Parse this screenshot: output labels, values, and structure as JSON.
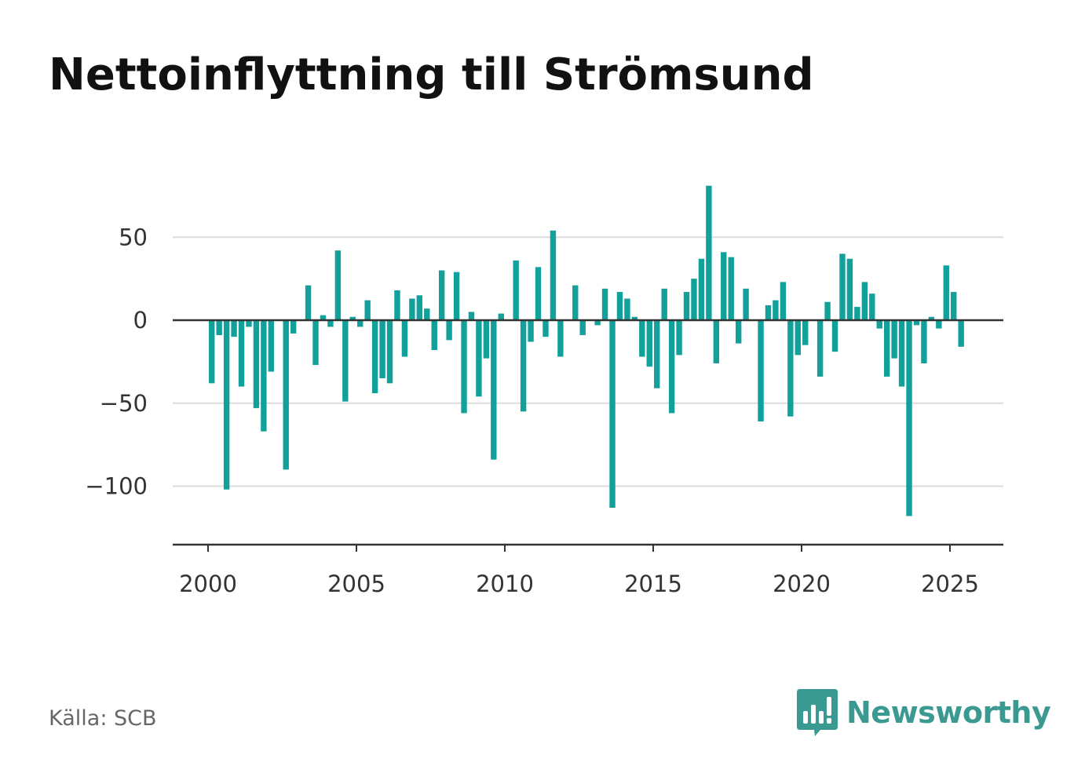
{
  "title": "Nettoinflyttning till Strömsund",
  "source": "Källa: SCB",
  "brand": {
    "name": "Newsworthy",
    "icon": "newsworthy-logo-icon"
  },
  "colors": {
    "bar": "#12a19a",
    "brand": "#3a9a92",
    "grid": "#dddddd",
    "axis": "#333333"
  },
  "chart_data": {
    "type": "bar",
    "title": "Nettoinflyttning till Strömsund",
    "xlabel": "",
    "ylabel": "",
    "x_ticks": [
      2000,
      2005,
      2010,
      2015,
      2020,
      2025
    ],
    "y_ticks": [
      50,
      0,
      -50,
      -100
    ],
    "y_tick_labels": [
      "50",
      "0",
      "−50",
      "−100"
    ],
    "xlim": [
      1999.3,
      2027.2
    ],
    "ylim": [
      -135,
      90
    ],
    "grid": true,
    "legend": "none",
    "series": [
      {
        "points": [
          {
            "x": 2000.125,
            "y": -38
          },
          {
            "x": 2000.375,
            "y": -9
          },
          {
            "x": 2000.625,
            "y": -102
          },
          {
            "x": 2000.875,
            "y": -10
          },
          {
            "x": 2001.125,
            "y": -40
          },
          {
            "x": 2001.375,
            "y": -4
          },
          {
            "x": 2001.625,
            "y": -53
          },
          {
            "x": 2001.875,
            "y": -67
          },
          {
            "x": 2002.125,
            "y": -31
          },
          {
            "x": 2002.375,
            "y": 0
          },
          {
            "x": 2002.625,
            "y": -90
          },
          {
            "x": 2002.875,
            "y": -8
          },
          {
            "x": 2003.125,
            "y": 0
          },
          {
            "x": 2003.375,
            "y": 21
          },
          {
            "x": 2003.625,
            "y": -27
          },
          {
            "x": 2003.875,
            "y": 3
          },
          {
            "x": 2004.125,
            "y": -4
          },
          {
            "x": 2004.375,
            "y": 42
          },
          {
            "x": 2004.625,
            "y": -49
          },
          {
            "x": 2004.875,
            "y": 2
          },
          {
            "x": 2005.125,
            "y": -4
          },
          {
            "x": 2005.375,
            "y": 12
          },
          {
            "x": 2005.625,
            "y": -44
          },
          {
            "x": 2005.875,
            "y": -35
          },
          {
            "x": 2006.125,
            "y": -38
          },
          {
            "x": 2006.375,
            "y": 18
          },
          {
            "x": 2006.625,
            "y": -22
          },
          {
            "x": 2006.875,
            "y": 13
          },
          {
            "x": 2007.125,
            "y": 15
          },
          {
            "x": 2007.375,
            "y": 7
          },
          {
            "x": 2007.625,
            "y": -18
          },
          {
            "x": 2007.875,
            "y": 30
          },
          {
            "x": 2008.125,
            "y": -12
          },
          {
            "x": 2008.375,
            "y": 29
          },
          {
            "x": 2008.625,
            "y": -56
          },
          {
            "x": 2008.875,
            "y": 5
          },
          {
            "x": 2009.125,
            "y": -46
          },
          {
            "x": 2009.375,
            "y": -23
          },
          {
            "x": 2009.625,
            "y": -84
          },
          {
            "x": 2009.875,
            "y": 4
          },
          {
            "x": 2010.125,
            "y": 0
          },
          {
            "x": 2010.375,
            "y": 36
          },
          {
            "x": 2010.625,
            "y": -55
          },
          {
            "x": 2010.875,
            "y": -13
          },
          {
            "x": 2011.125,
            "y": 32
          },
          {
            "x": 2011.375,
            "y": -10
          },
          {
            "x": 2011.625,
            "y": 54
          },
          {
            "x": 2011.875,
            "y": -22
          },
          {
            "x": 2012.125,
            "y": 0
          },
          {
            "x": 2012.375,
            "y": 21
          },
          {
            "x": 2012.625,
            "y": -9
          },
          {
            "x": 2012.875,
            "y": 0
          },
          {
            "x": 2013.125,
            "y": -3
          },
          {
            "x": 2013.375,
            "y": 19
          },
          {
            "x": 2013.625,
            "y": -113
          },
          {
            "x": 2013.875,
            "y": 17
          },
          {
            "x": 2014.125,
            "y": 13
          },
          {
            "x": 2014.375,
            "y": 2
          },
          {
            "x": 2014.625,
            "y": -22
          },
          {
            "x": 2014.875,
            "y": -28
          },
          {
            "x": 2015.125,
            "y": -41
          },
          {
            "x": 2015.375,
            "y": 19
          },
          {
            "x": 2015.625,
            "y": -56
          },
          {
            "x": 2015.875,
            "y": -21
          },
          {
            "x": 2016.125,
            "y": 17
          },
          {
            "x": 2016.375,
            "y": 25
          },
          {
            "x": 2016.625,
            "y": 37
          },
          {
            "x": 2016.875,
            "y": 81
          },
          {
            "x": 2017.125,
            "y": -26
          },
          {
            "x": 2017.375,
            "y": 41
          },
          {
            "x": 2017.625,
            "y": 38
          },
          {
            "x": 2017.875,
            "y": -14
          },
          {
            "x": 2018.125,
            "y": 19
          },
          {
            "x": 2018.375,
            "y": 0
          },
          {
            "x": 2018.625,
            "y": -61
          },
          {
            "x": 2018.875,
            "y": 9
          },
          {
            "x": 2019.125,
            "y": 12
          },
          {
            "x": 2019.375,
            "y": 23
          },
          {
            "x": 2019.625,
            "y": -58
          },
          {
            "x": 2019.875,
            "y": -21
          },
          {
            "x": 2020.125,
            "y": -15
          },
          {
            "x": 2020.375,
            "y": 0
          },
          {
            "x": 2020.625,
            "y": -34
          },
          {
            "x": 2020.875,
            "y": 11
          },
          {
            "x": 2021.125,
            "y": -19
          },
          {
            "x": 2021.375,
            "y": 40
          },
          {
            "x": 2021.625,
            "y": 37
          },
          {
            "x": 2021.875,
            "y": 8
          },
          {
            "x": 2022.125,
            "y": 23
          },
          {
            "x": 2022.375,
            "y": 16
          },
          {
            "x": 2022.625,
            "y": -5
          },
          {
            "x": 2022.875,
            "y": -34
          },
          {
            "x": 2023.125,
            "y": -23
          },
          {
            "x": 2023.375,
            "y": -40
          },
          {
            "x": 2023.625,
            "y": -118
          },
          {
            "x": 2023.875,
            "y": -3
          },
          {
            "x": 2024.125,
            "y": -26
          },
          {
            "x": 2024.375,
            "y": 2
          },
          {
            "x": 2024.625,
            "y": -5
          },
          {
            "x": 2024.875,
            "y": 33
          },
          {
            "x": 2025.125,
            "y": 17
          },
          {
            "x": 2025.375,
            "y": -16
          }
        ]
      }
    ]
  }
}
